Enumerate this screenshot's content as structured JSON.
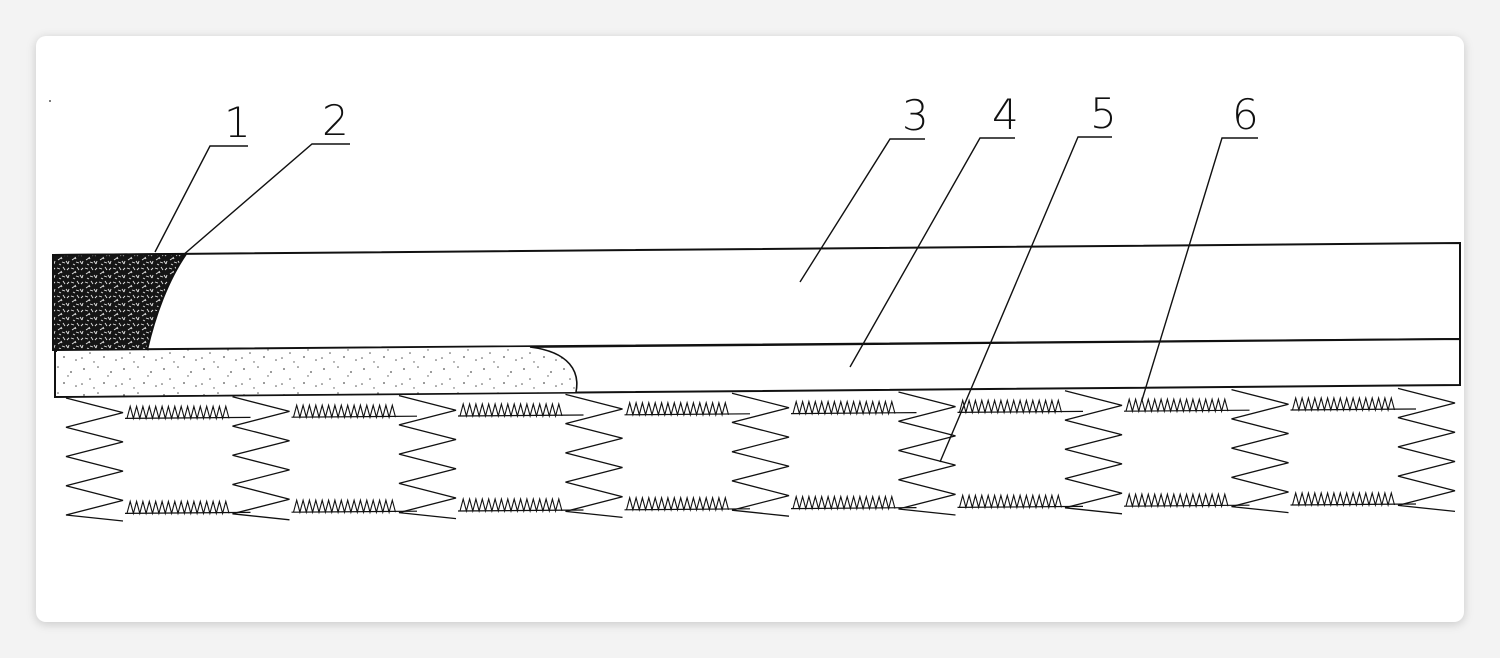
{
  "labels": [
    {
      "id": "1",
      "text": "1"
    },
    {
      "id": "2",
      "text": "2"
    },
    {
      "id": "3",
      "text": "3"
    },
    {
      "id": "4",
      "text": "4"
    },
    {
      "id": "5",
      "text": "5"
    },
    {
      "id": "6",
      "text": "6"
    }
  ],
  "colors": {
    "ink": "#111111",
    "stipple": "#555555",
    "background": "#ffffff"
  }
}
